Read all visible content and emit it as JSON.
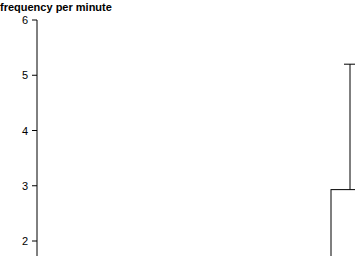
{
  "chart_data": {
    "type": "bar",
    "y_label": "frequency per minute",
    "categories": [
      null
    ],
    "values": [
      2.93
    ],
    "errors": [
      2.27
    ],
    "color": "#ffffff",
    "ylim": [
      1.7,
      6
    ],
    "yticks": [
      2,
      3,
      4,
      5,
      6
    ],
    "grid": false,
    "tick_labels": "y"
  }
}
